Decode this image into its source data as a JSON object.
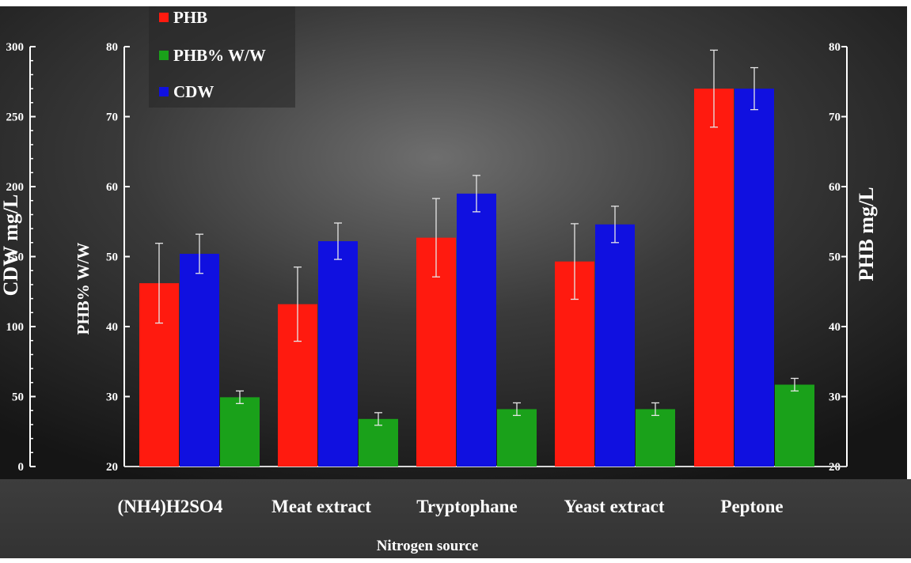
{
  "chart_data": {
    "type": "bar",
    "categories": [
      "(NH4)H2SO4",
      "Meat extract",
      "Tryptophane",
      "Yeast extract",
      "Peptone"
    ],
    "xlabel": "Nitrogen source",
    "axes": {
      "cdw": {
        "label": "CDW mg/L",
        "range": [
          0,
          300
        ],
        "ticks": [
          "0",
          "50",
          "100",
          "150",
          "200",
          "250",
          "300"
        ]
      },
      "phb_percent": {
        "label": "PHB% W/W",
        "range": [
          20,
          80
        ],
        "ticks": [
          "20",
          "30",
          "40",
          "50",
          "60",
          "70",
          "80"
        ]
      },
      "phb": {
        "label": "PHB  mg/L",
        "range": [
          20,
          80
        ],
        "ticks": [
          "20",
          "30",
          "40",
          "50",
          "60",
          "70",
          "80"
        ]
      }
    },
    "series": [
      {
        "name": "PHB",
        "axis": "phb",
        "color": "#ff1a0f",
        "values": [
          46.2,
          43.2,
          52.7,
          49.3,
          74.0
        ],
        "errors": [
          5.7,
          5.3,
          5.6,
          5.4,
          5.5
        ]
      },
      {
        "name": "CDW",
        "axis": "cdw",
        "color": "#1010e0",
        "values": [
          152,
          161,
          195,
          173,
          270
        ],
        "errors": [
          14,
          13,
          13,
          13,
          15
        ]
      },
      {
        "name": "PHB% W/W",
        "axis": "phb_percent",
        "color": "#1aa11a",
        "values": [
          29.9,
          26.8,
          28.2,
          28.2,
          31.7
        ],
        "errors": [
          0.9,
          0.9,
          0.9,
          0.9,
          0.9
        ]
      }
    ],
    "legend": {
      "placement": "top-left",
      "entries": [
        {
          "label": "PHB",
          "color": "#ff1a0f"
        },
        {
          "label": "PHB% W/W",
          "color": "#1aa11a"
        },
        {
          "label": "CDW",
          "color": "#1010e0"
        }
      ]
    },
    "grid": false
  }
}
